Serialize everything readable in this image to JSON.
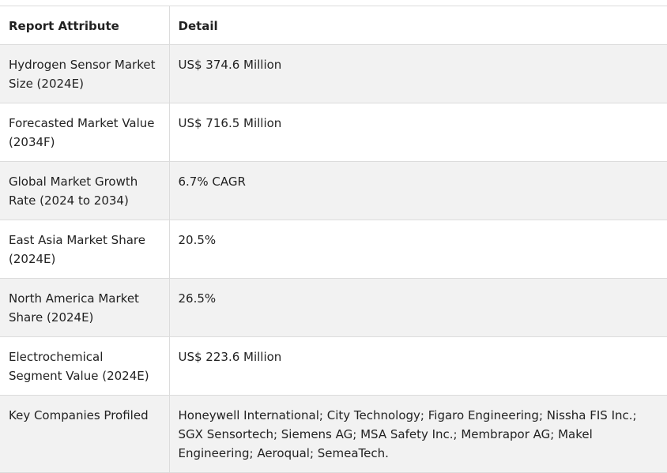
{
  "table": {
    "headers": [
      "Report Attribute",
      "Detail"
    ],
    "rows": [
      [
        "Hydrogen Sensor Market Size (2024E)",
        "US$ 374.6 Million"
      ],
      [
        "Forecasted Market Value (2034F)",
        "US$ 716.5 Million"
      ],
      [
        "Global Market Growth Rate (2024 to 2034)",
        "6.7% CAGR"
      ],
      [
        "East Asia Market Share (2024E)",
        "20.5%"
      ],
      [
        "North America Market Share (2024E)",
        "26.5%"
      ],
      [
        "Electrochemical Segment Value (2024E)",
        "US$ 223.6 Million"
      ],
      [
        "Key Companies Profiled",
        "Honeywell International; City Technology; Figaro Engineering; Nissha FIS Inc.; SGX Sensortech; Siemens AG; MSA Safety Inc.; Membrapor AG; Makel Engineering; Aeroqual; SemeaTech."
      ]
    ]
  }
}
